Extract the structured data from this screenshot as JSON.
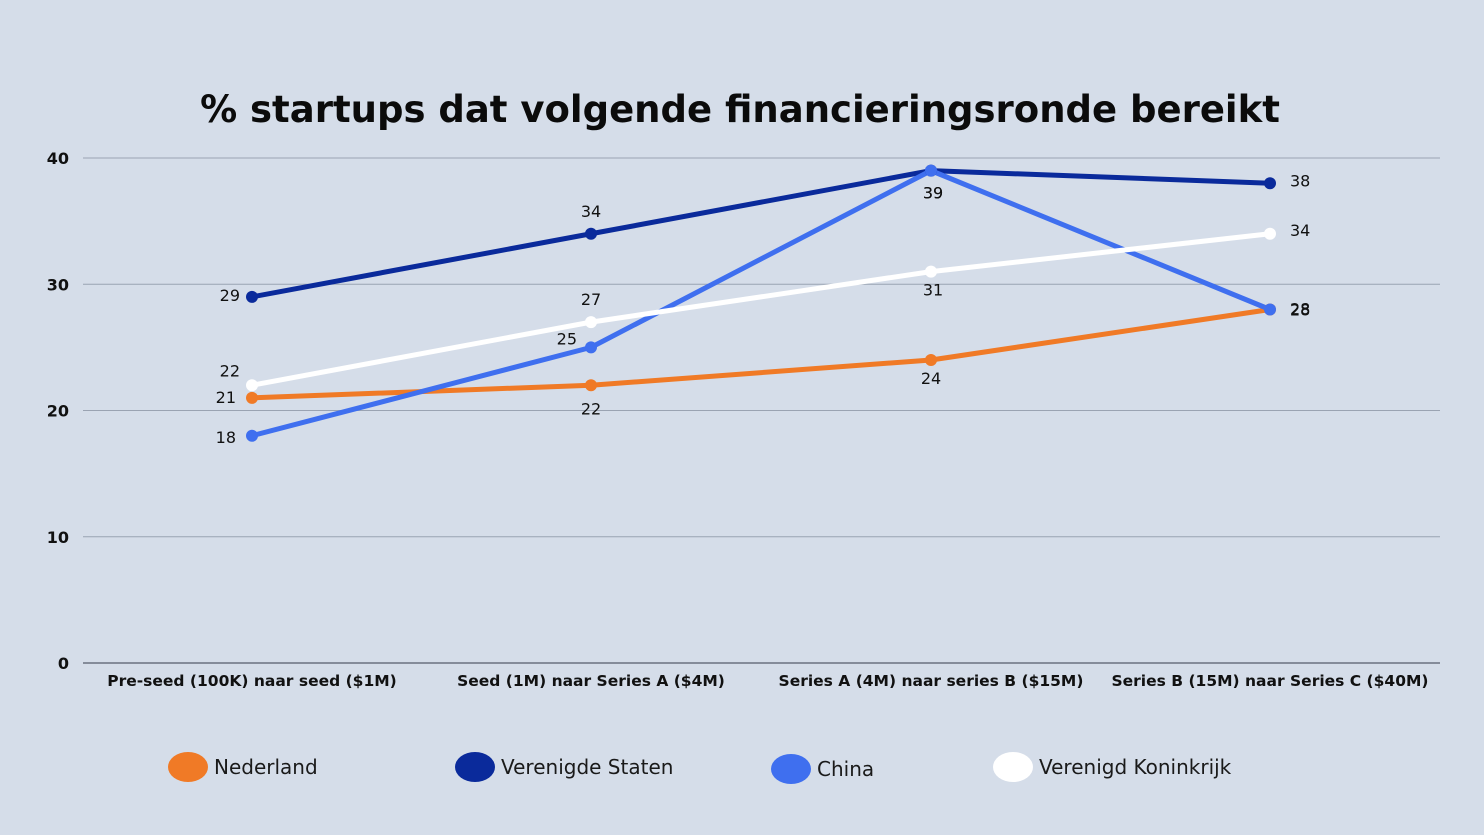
{
  "chart_data": {
    "type": "line",
    "title": "% startups dat volgende financieringsronde bereikt",
    "categories": [
      "Pre-seed (100K) naar seed ($1M)",
      "Seed (1M) naar Series A ($4M)",
      "Series A (4M) naar series B ($15M)",
      "Series B (15M) naar Series C ($40M)"
    ],
    "y_ticks": [
      "0",
      "10",
      "20",
      "30",
      "40"
    ],
    "ylim": [
      0,
      40
    ],
    "grid": true,
    "legend_position": "bottom",
    "series": [
      {
        "name": "Nederland",
        "color": "#f07a26",
        "values": [
          21,
          22,
          24,
          28
        ]
      },
      {
        "name": "Verenigde Staten",
        "color": "#0a2a9b",
        "values": [
          29,
          34,
          39,
          38
        ]
      },
      {
        "name": "China",
        "color": "#3f6fef",
        "values": [
          18,
          25,
          39,
          28
        ]
      },
      {
        "name": "Verenigd Koninkrijk",
        "color": "#ffffff",
        "values": [
          22,
          27,
          31,
          34
        ]
      }
    ]
  }
}
